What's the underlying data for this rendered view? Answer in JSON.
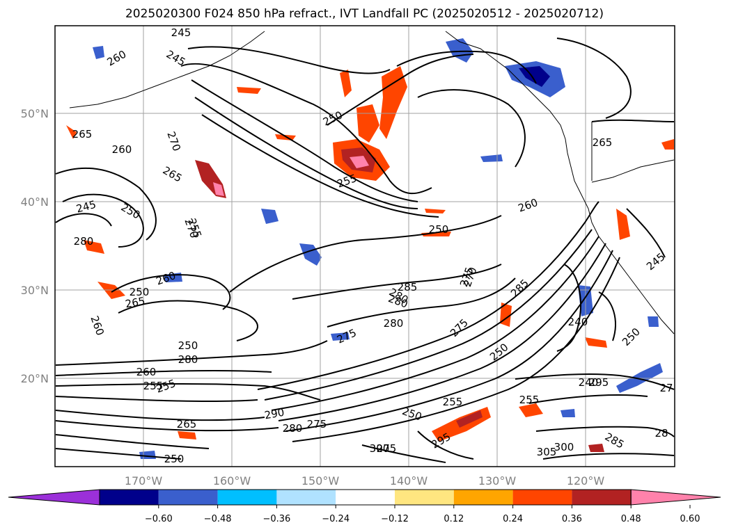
{
  "title": "2025020300 F024 850 hPa refract., IVT Landfall PC (2025020512 - 2025020712)",
  "map": {
    "lat_labels": [
      "50°N",
      "40°N",
      "30°N",
      "20°N"
    ],
    "lon_labels": [
      "170°W",
      "160°W",
      "150°W",
      "140°W",
      "130°W",
      "120°W"
    ],
    "lon_range": [
      -180,
      -110
    ],
    "lat_range": [
      10,
      60
    ],
    "contour_labels": [
      "245",
      "260",
      "245",
      "250",
      "265",
      "260",
      "270",
      "255",
      "265",
      "245",
      "250",
      "255",
      "280",
      "250",
      "260",
      "265",
      "260",
      "250",
      "260",
      "270",
      "285",
      "280",
      "275",
      "280",
      "275",
      "285",
      "250",
      "280",
      "260",
      "255",
      "250",
      "255",
      "250",
      "240",
      "295",
      "290",
      "280",
      "275",
      "300",
      "295",
      "305",
      "300",
      "250",
      "255",
      "240",
      "255",
      "285",
      "280",
      "270",
      "275",
      "265",
      "245",
      "250",
      "265",
      "275",
      "28",
      "27"
    ]
  },
  "colorbar": {
    "ticks": [
      "−0.60",
      "−0.48",
      "−0.36",
      "−0.24",
      "−0.12",
      "0.12",
      "0.24",
      "0.36",
      "0.48",
      "0.60"
    ],
    "colors": [
      "#9b30d9",
      "#00008b",
      "#3a5fcd",
      "#00bfff",
      "#b0e2ff",
      "#ffffff",
      "#ffe680",
      "#ffa500",
      "#ff4500",
      "#b22222",
      "#ff82ab"
    ]
  }
}
